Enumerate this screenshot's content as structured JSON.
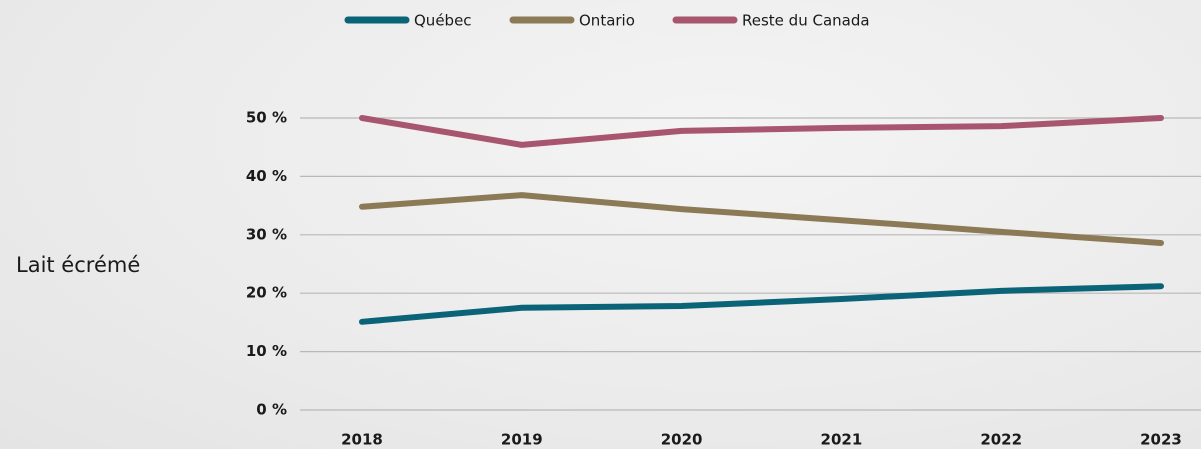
{
  "chart_data": {
    "type": "line",
    "row_label": "Lait écrémé",
    "categories": [
      "2018",
      "2019",
      "2020",
      "2021",
      "2022",
      "2023"
    ],
    "series": [
      {
        "name": "Québec",
        "color": "#0b6378",
        "values": [
          15.1,
          17.5,
          17.8,
          19.0,
          20.4,
          21.2
        ]
      },
      {
        "name": "Ontario",
        "color": "#8b7a55",
        "values": [
          34.8,
          36.8,
          34.4,
          32.5,
          30.5,
          28.6
        ]
      },
      {
        "name": "Reste du Canada",
        "color": "#a8566f",
        "values": [
          50.0,
          45.4,
          47.8,
          48.3,
          48.6,
          50.0
        ]
      }
    ],
    "ylim": [
      0,
      50
    ],
    "yticks": [
      {
        "value": 0,
        "label": "0 %"
      },
      {
        "value": 10,
        "label": "10 %"
      },
      {
        "value": 20,
        "label": "20 %"
      },
      {
        "value": 30,
        "label": "30 %"
      },
      {
        "value": 40,
        "label": "40 %"
      },
      {
        "value": 50,
        "label": "50 %"
      }
    ],
    "grid": true,
    "legend": "top"
  }
}
